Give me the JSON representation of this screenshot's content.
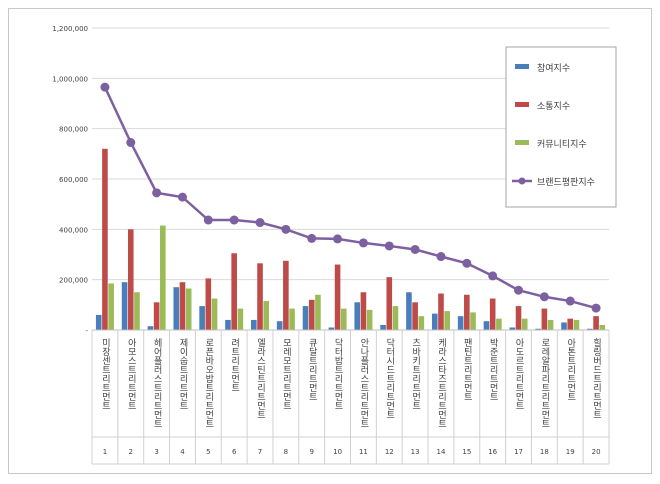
{
  "chart_data": {
    "type": "bar",
    "title": "",
    "xlabel": "",
    "ylabel": "",
    "ylim": [
      0,
      1200000
    ],
    "yticks": [
      0,
      200000,
      400000,
      600000,
      800000,
      1000000,
      1200000
    ],
    "ytick_labels": [
      "-",
      "200,000",
      "400,000",
      "600,000",
      "800,000",
      "1,000,000",
      "1,200,000"
    ],
    "grid": true,
    "legend_position": "top-right",
    "ranks": [
      "1",
      "2",
      "3",
      "4",
      "5",
      "6",
      "7",
      "8",
      "9",
      "10",
      "11",
      "12",
      "13",
      "14",
      "15",
      "16",
      "17",
      "18",
      "19",
      "20"
    ],
    "categories": [
      "미장센트리트먼트",
      "아모스트리트먼트",
      "헤어플러스트리트먼트",
      "제이숩트리트먼트",
      "로픈바오밥트리트먼트",
      "려트리트먼트",
      "엘라스틴트리트먼트",
      "모레모트리트먼트",
      "큐달트리트먼트",
      "닥터밥트리트먼트",
      "안나플러스트리트먼트",
      "닥터시드트리트먼트",
      "츠바키트리트먼트",
      "케라스타즈트리트먼트",
      "팬틴트리트먼트",
      "박준트리트먼트",
      "아도르트리트먼트",
      "로레알파리트리트먼트",
      "아톤트리트먼트",
      "힐링버드트리트먼트"
    ],
    "series": [
      {
        "name": "참여지수",
        "kind": "bar",
        "color": "#4a7ebb",
        "values": [
          60000,
          190000,
          15000,
          170000,
          95000,
          40000,
          40000,
          35000,
          95000,
          10000,
          110000,
          20000,
          150000,
          65000,
          55000,
          35000,
          10000,
          5000,
          30000,
          5000
        ]
      },
      {
        "name": "소통지수",
        "kind": "bar",
        "color": "#be4b48",
        "values": [
          720000,
          400000,
          110000,
          190000,
          205000,
          305000,
          265000,
          275000,
          120000,
          260000,
          150000,
          210000,
          110000,
          145000,
          140000,
          125000,
          95000,
          85000,
          45000,
          55000
        ]
      },
      {
        "name": "커뮤니티지수",
        "kind": "bar",
        "color": "#9bbb59",
        "values": [
          185000,
          150000,
          415000,
          165000,
          125000,
          85000,
          115000,
          85000,
          140000,
          85000,
          80000,
          95000,
          55000,
          75000,
          70000,
          45000,
          45000,
          40000,
          40000,
          20000
        ]
      },
      {
        "name": "브랜드평판지수",
        "kind": "line",
        "color": "#7d60a0",
        "values": [
          965000,
          745000,
          545000,
          528000,
          437000,
          437000,
          427000,
          400000,
          364000,
          362000,
          346000,
          334000,
          320000,
          292000,
          265000,
          215000,
          158000,
          132000,
          115000,
          87000
        ]
      }
    ]
  }
}
